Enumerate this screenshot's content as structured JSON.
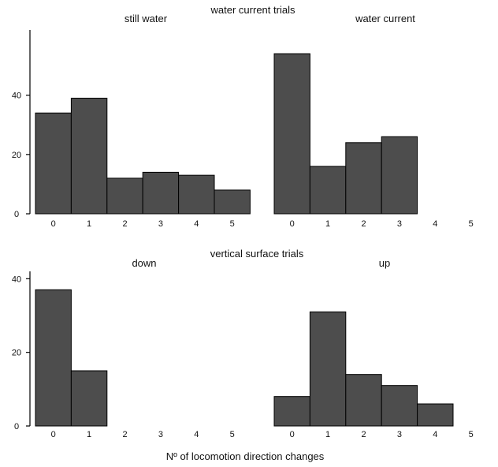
{
  "chart_data": [
    {
      "type": "bar",
      "title": "water current trials",
      "ylim": [
        0,
        62
      ],
      "yticks": [
        0,
        20,
        40
      ],
      "bar_color": "#4d4d4d",
      "series": [
        {
          "name": "still water",
          "categories": [
            "0",
            "1",
            "2",
            "3",
            "4",
            "5"
          ],
          "values": [
            34,
            39,
            12,
            14,
            13,
            8
          ]
        },
        {
          "name": "water current",
          "categories": [
            "0",
            "1",
            "2",
            "3",
            "4",
            "5"
          ],
          "values": [
            54,
            16,
            24,
            26,
            0,
            0
          ]
        }
      ]
    },
    {
      "type": "bar",
      "title": "vertical surface trials",
      "ylim": [
        0,
        42
      ],
      "yticks": [
        0,
        20,
        40
      ],
      "bar_color": "#4d4d4d",
      "series": [
        {
          "name": "down",
          "categories": [
            "0",
            "1",
            "2",
            "3",
            "4",
            "5"
          ],
          "values": [
            37,
            15,
            0,
            0,
            0,
            0
          ]
        },
        {
          "name": "up",
          "categories": [
            "0",
            "1",
            "2",
            "3",
            "4",
            "5"
          ],
          "values": [
            8,
            31,
            14,
            11,
            6,
            0
          ]
        }
      ]
    }
  ],
  "xlabel": "Nº of locomotion direction changes"
}
